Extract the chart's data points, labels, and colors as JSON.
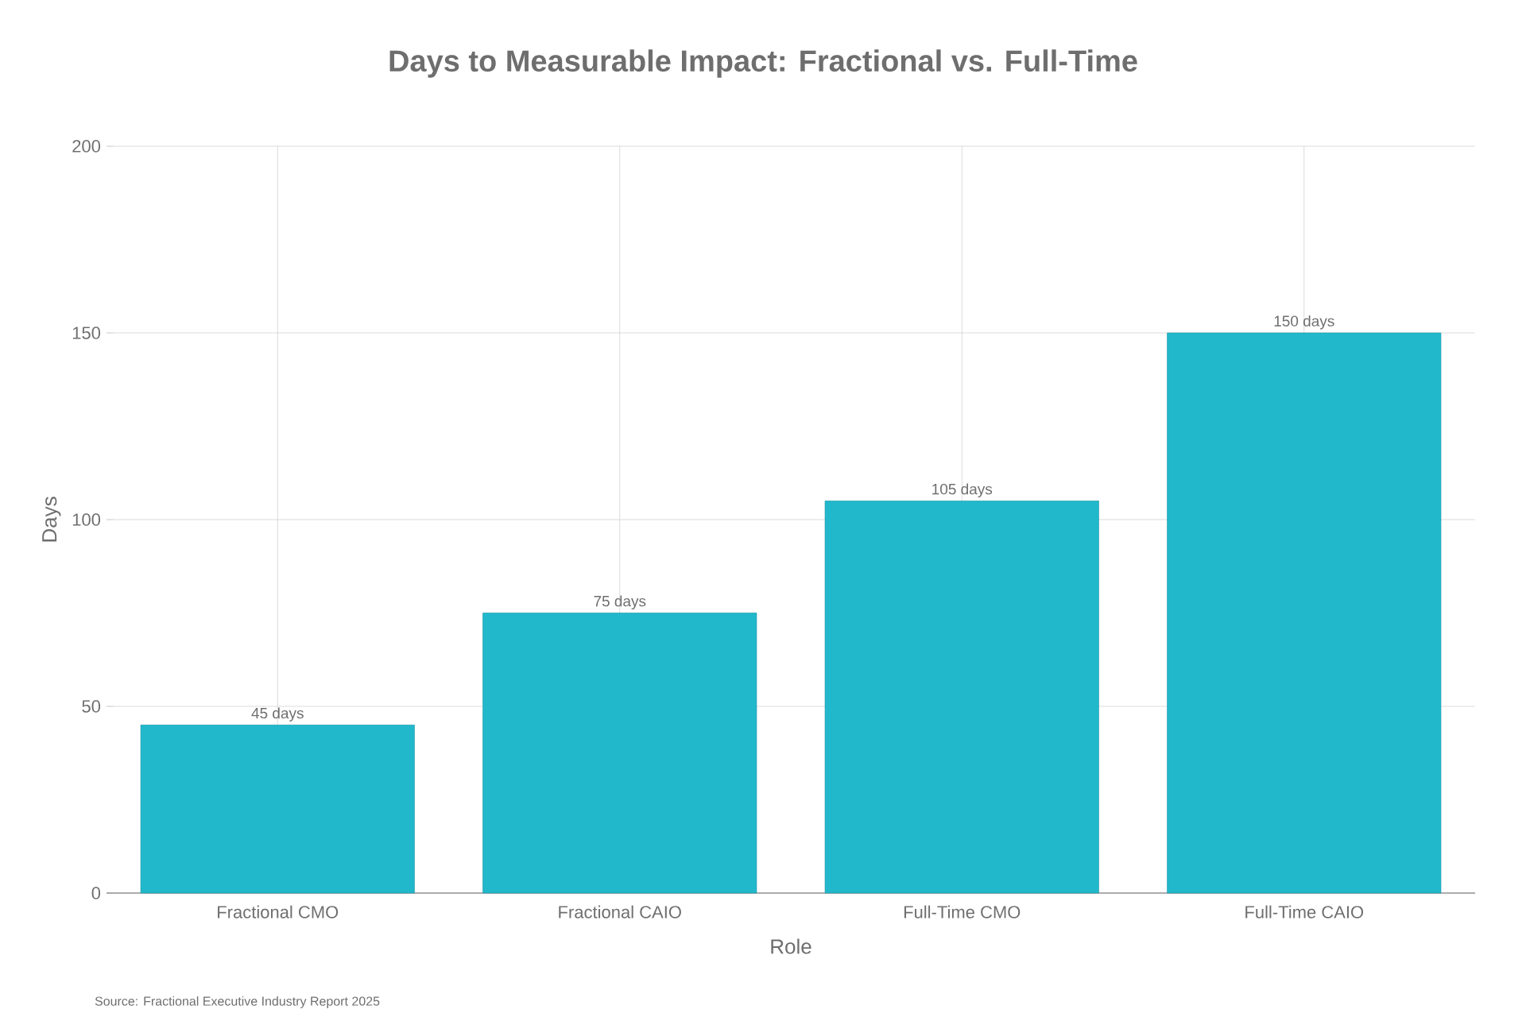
{
  "chart_data": {
    "type": "bar",
    "title": "Days to Measurable Impact: Fractional vs. Full-Time",
    "xlabel": "Role",
    "ylabel": "Days",
    "categories": [
      "Fractional CMO",
      "Fractional CAIO",
      "Full-Time CMO",
      "Full-Time CAIO"
    ],
    "values": [
      45,
      75,
      105,
      150
    ],
    "color": "#21b8cc",
    "value_labels": [
      "45 days",
      "75 days",
      "105 days",
      "150 days"
    ],
    "ylim": [
      0,
      200
    ],
    "yticks": [
      0,
      50,
      100,
      150,
      200
    ],
    "grid": true,
    "annotations": [
      "Source: Fractional Executive Industry Report 2025"
    ]
  }
}
